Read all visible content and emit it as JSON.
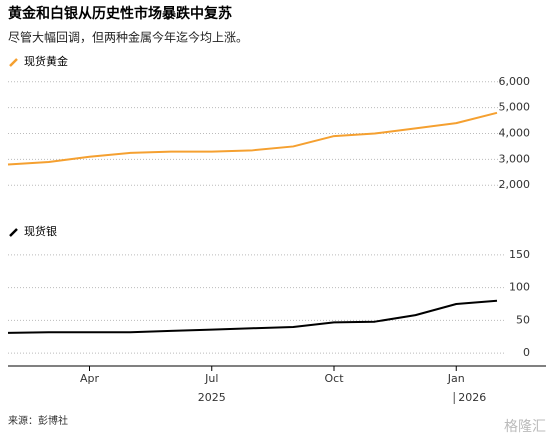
{
  "title": "黄金和白银从历史性市场暴跌中复苏",
  "subtitle": "尽管大幅回调，但两种金属今年迄今均上涨。",
  "source": "来源：彭博社",
  "watermark": "格隆汇",
  "chart_data": [
    {
      "type": "line",
      "x": [
        "2025-02",
        "2025-03",
        "2025-04",
        "2025-05",
        "2025-06",
        "2025-07",
        "2025-08",
        "2025-09",
        "2025-10",
        "2025-11",
        "2025-12",
        "2026-01",
        "2026-02"
      ],
      "xlim": [
        "2025-02",
        "2026-02"
      ],
      "series": [
        {
          "name": "现货黄金",
          "color": "#f5a030",
          "values": [
            2800,
            2900,
            3100,
            3250,
            3300,
            3300,
            3350,
            3500,
            3900,
            4000,
            4200,
            4400,
            4800
          ]
        }
      ],
      "ylim": [
        1700,
        6300
      ],
      "yticks": [
        {
          "value": 2000,
          "label": "2,000"
        },
        {
          "value": 3000,
          "label": "3,000"
        },
        {
          "value": 4000,
          "label": "4,000"
        },
        {
          "value": 5000,
          "label": "5,000"
        },
        {
          "value": 6000,
          "label": "6,000"
        }
      ],
      "grid": true
    },
    {
      "type": "line",
      "x": [
        "2025-02",
        "2025-03",
        "2025-04",
        "2025-05",
        "2025-06",
        "2025-07",
        "2025-08",
        "2025-09",
        "2025-10",
        "2025-11",
        "2025-12",
        "2026-01",
        "2026-02"
      ],
      "xlim": [
        "2025-02",
        "2026-02"
      ],
      "series": [
        {
          "name": "现货银",
          "color": "#000000",
          "values": [
            31,
            32,
            32,
            32,
            34,
            36,
            38,
            40,
            47,
            48,
            58,
            75,
            80
          ]
        }
      ],
      "ylim": [
        -15,
        165
      ],
      "yticks": [
        0,
        50,
        100,
        150
      ],
      "xticks": [
        {
          "value": "2025-04",
          "label": "Apr"
        },
        {
          "value": "2025-07",
          "label": "Jul"
        },
        {
          "value": "2025-10",
          "label": "Oct"
        },
        {
          "value": "2026-01",
          "label": "Jan"
        }
      ],
      "year_labels": [
        {
          "value": "2025-07",
          "label": "2025"
        },
        {
          "value": "2026-01",
          "label": "2026"
        }
      ],
      "grid": true
    }
  ]
}
